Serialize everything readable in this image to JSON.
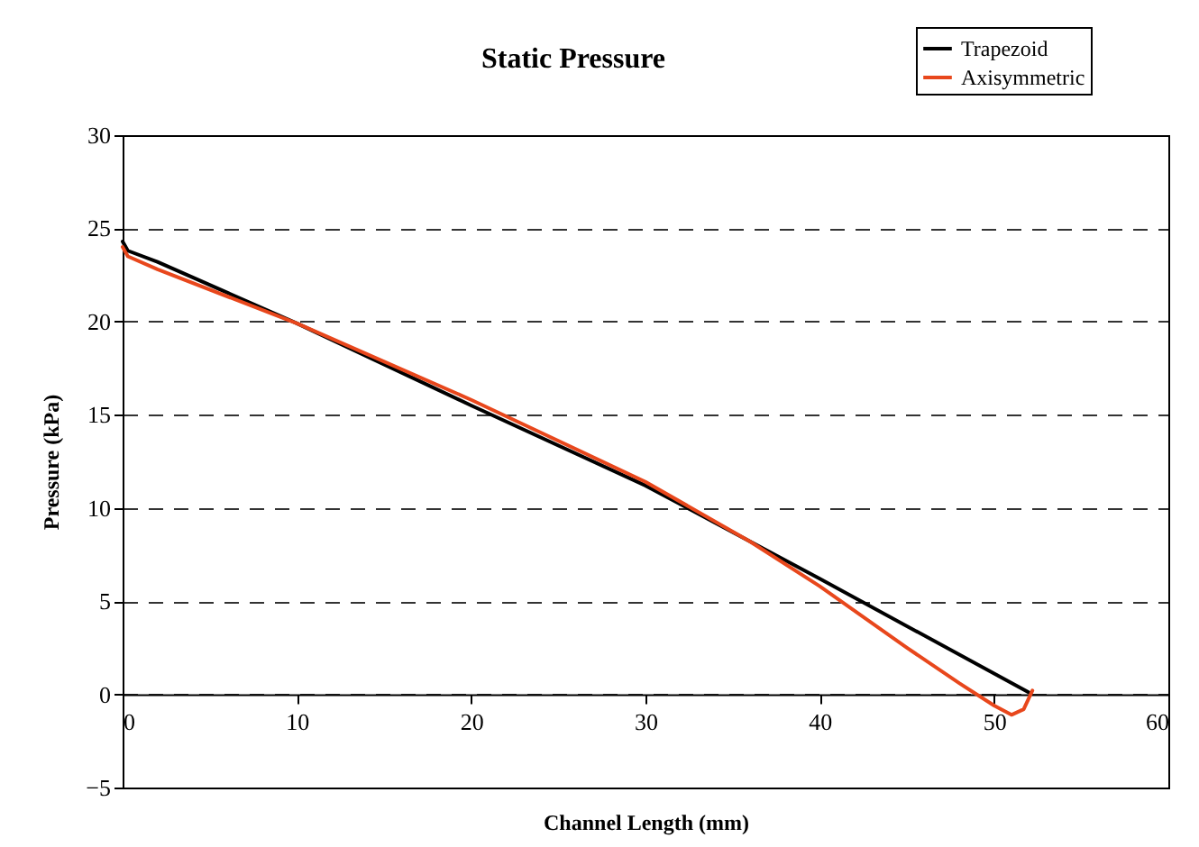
{
  "chart_data": {
    "type": "line",
    "title": "Static Pressure",
    "xlabel": "Channel Length (mm)",
    "ylabel": "Pressure (kPa)",
    "xlim": [
      0,
      60
    ],
    "xticks": [
      0,
      10,
      20,
      30,
      40,
      50,
      60
    ],
    "ylim": [
      -5,
      30
    ],
    "yticks": [
      -5,
      0,
      5,
      10,
      15,
      20,
      25,
      30
    ],
    "grid": "y",
    "legend": "top right",
    "line_style": "solid",
    "series": [
      {
        "name": "Trapezoid",
        "color": "#000000",
        "x": [
          0,
          0.3,
          2,
          10,
          20,
          30,
          40,
          52
        ],
        "values": [
          24.3,
          23.8,
          23.2,
          19.9,
          15.5,
          11.2,
          6.2,
          0.1
        ]
      },
      {
        "name": "Axisymmetric",
        "color": "#e8471c",
        "x": [
          0,
          0.3,
          2,
          10,
          20,
          30,
          36,
          40,
          45,
          48,
          50,
          51,
          51.7,
          52.2
        ],
        "values": [
          24.0,
          23.5,
          22.8,
          19.9,
          15.8,
          11.4,
          8.2,
          5.8,
          2.5,
          0.6,
          -0.6,
          -1.1,
          -0.8,
          0.2
        ]
      }
    ]
  }
}
